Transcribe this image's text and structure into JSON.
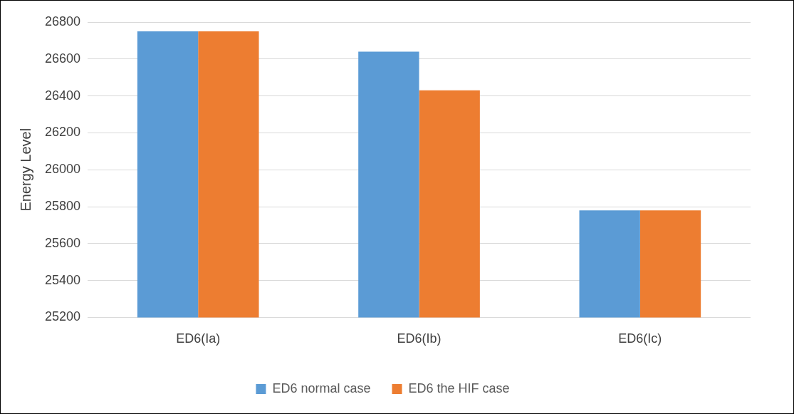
{
  "chart_data": {
    "type": "bar",
    "ylabel": "Energy Level",
    "categories": [
      "ED6(Ia)",
      "ED6(Ib)",
      "ED6(Ic)"
    ],
    "series": [
      {
        "name": "ED6 normal case",
        "color": "#5b9bd5",
        "values": [
          26750,
          26640,
          25780
        ]
      },
      {
        "name": "ED6 the HIF case",
        "color": "#ed7d31",
        "values": [
          26750,
          26430,
          25780
        ]
      }
    ],
    "ylim": [
      25200,
      26800
    ],
    "yticks": [
      25200,
      25400,
      25600,
      25800,
      26000,
      26200,
      26400,
      26600,
      26800
    ],
    "grid": "y",
    "legend": "bottom"
  }
}
